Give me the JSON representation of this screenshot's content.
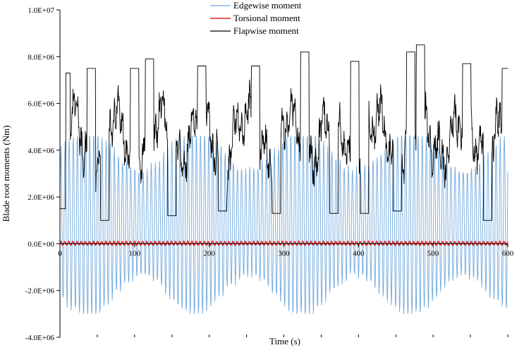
{
  "chart_data": {
    "type": "line",
    "title": "",
    "xlabel": "Time (s)",
    "ylabel": "Blade root moments (Nm)",
    "xlim": [
      0,
      600
    ],
    "ylim": [
      -4000000,
      10000000
    ],
    "x_ticks": [
      0,
      100,
      200,
      300,
      400,
      500,
      600
    ],
    "x_tick_labels": [
      "0",
      "100",
      "200",
      "300",
      "400",
      "500",
      "600"
    ],
    "y_ticks": [
      -4000000,
      -2000000,
      0,
      2000000,
      4000000,
      6000000,
      8000000,
      10000000
    ],
    "y_tick_labels": [
      "-4.0E+06",
      "-2.0E+06",
      "0.0E+00",
      "2.0E+06",
      "4.0E+06",
      "6.0E+06",
      "8.0E+06",
      "1.0E+07"
    ],
    "grid": false,
    "legend_position": "top-center",
    "sample_step_s": 0.5,
    "series": [
      {
        "name": "Edgewise moment",
        "color": "#6fa8dc",
        "description_values": "oscillation about ~0.9E+06 with period ~5.5 s, amplitude ~3.5E+06",
        "mean": 900000,
        "amplitude": 3500000,
        "period_s": 5.5
      },
      {
        "name": "Torsional moment",
        "color": "#e02020",
        "mean": 20000,
        "amplitude": 90000,
        "period_s": 5.5
      },
      {
        "name": "Flapwise moment",
        "color": "#000000",
        "mean": 4600000,
        "amplitude": 1800000,
        "period_s": 5.5
      }
    ],
    "flapwise_peaks": [
      {
        "x": 8,
        "y": 7300000
      },
      {
        "x": 42,
        "y": 7500000
      },
      {
        "x": 100,
        "y": 7500000
      },
      {
        "x": 120,
        "y": 7900000
      },
      {
        "x": 190,
        "y": 7600000
      },
      {
        "x": 262,
        "y": 7600000
      },
      {
        "x": 328,
        "y": 8200000
      },
      {
        "x": 395,
        "y": 7800000
      },
      {
        "x": 470,
        "y": 8200000
      },
      {
        "x": 483,
        "y": 8500000
      },
      {
        "x": 545,
        "y": 7700000
      },
      {
        "x": 598,
        "y": 7500000
      }
    ],
    "flapwise_troughs": [
      {
        "x": 2,
        "y": 1500000
      },
      {
        "x": 60,
        "y": 1000000
      },
      {
        "x": 150,
        "y": 1200000
      },
      {
        "x": 218,
        "y": 1400000
      },
      {
        "x": 290,
        "y": 1300000
      },
      {
        "x": 367,
        "y": 1300000
      },
      {
        "x": 408,
        "y": 1300000
      },
      {
        "x": 452,
        "y": 1400000
      },
      {
        "x": 573,
        "y": 1000000
      }
    ],
    "edgewise_min": -3000000,
    "edgewise_max": 4600000
  }
}
